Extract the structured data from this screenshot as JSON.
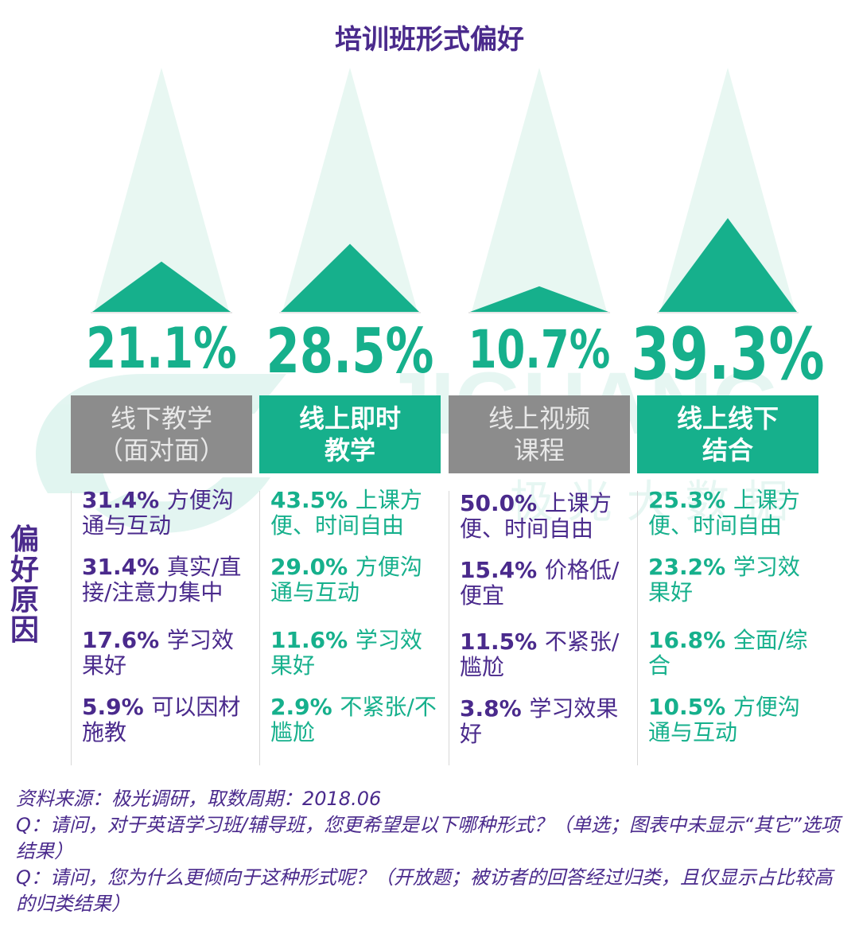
{
  "chart_data": {
    "type": "bar",
    "title": "培训班形式偏好",
    "categories": [
      "线下教学\n（面对面）",
      "线上即时\n教学",
      "线上视频\n课程",
      "线上线下\n结合"
    ],
    "values": [
      21.1,
      28.5,
      10.7,
      39.3
    ],
    "value_labels": [
      "21.1%",
      "28.5%",
      "10.7%",
      "39.3%"
    ],
    "highlight": [
      false,
      true,
      false,
      true
    ],
    "ylim": [
      0,
      100
    ],
    "colors": {
      "accent": "#16b08c",
      "ghost": "#e8f7f2",
      "gray_box": "#8c8c8c",
      "purple": "#4a2a8c"
    }
  },
  "side_label": "偏好原因",
  "reasons": [
    [
      {
        "pct": "31.4%",
        "text": "方便沟通与互动"
      },
      {
        "pct": "31.4%",
        "text": "真实/直接/注意力集中"
      },
      {
        "pct": "17.6%",
        "text": "学习效果好"
      },
      {
        "pct": "5.9%",
        "text": "可以因材施教"
      }
    ],
    [
      {
        "pct": "43.5%",
        "text": "上课方便、时间自由"
      },
      {
        "pct": "29.0%",
        "text": "方便沟通与互动"
      },
      {
        "pct": "11.6%",
        "text": "学习效果好"
      },
      {
        "pct": "2.9%",
        "text": "不紧张/不尴尬"
      }
    ],
    [
      {
        "pct": "50.0%",
        "text": "上课方便、时间自由"
      },
      {
        "pct": "15.4%",
        "text": "价格低/便宜"
      },
      {
        "pct": "11.5%",
        "text": "不紧张/尴尬"
      },
      {
        "pct": "3.8%",
        "text": "学习效果好"
      }
    ],
    [
      {
        "pct": "25.3%",
        "text": "上课方便、时间自由"
      },
      {
        "pct": "23.2%",
        "text": "学习效果好"
      },
      {
        "pct": "16.8%",
        "text": "全面/综合"
      },
      {
        "pct": "10.5%",
        "text": "方便沟通与互动"
      }
    ]
  ],
  "footnotes": {
    "source": "资料来源：极光调研，取数周期：2018.06",
    "q1": "Q：请问，对于英语学习班/辅导班，您更希望是以下哪种形式？（单选；图表中未显示“其它”选项结果）",
    "q2": "Q：请问，您为什么更倾向于这种形式呢？（开放题；被访者的回答经过归类，且仅显示占比较高的归类结果）"
  },
  "watermark": {
    "latin": "JIGUANG",
    "cn": "极 光 大 数 据"
  }
}
